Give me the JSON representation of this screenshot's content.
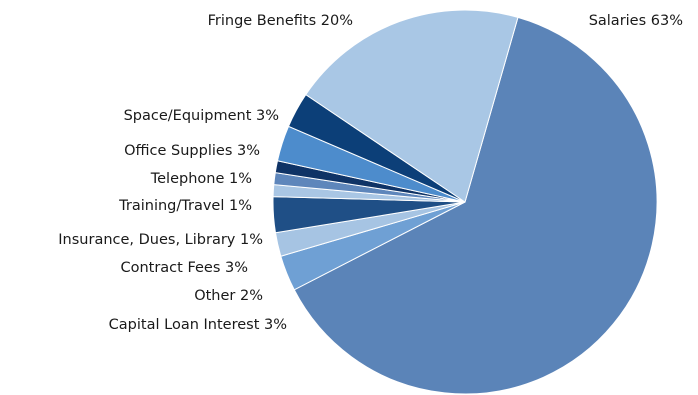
{
  "chart_data": {
    "type": "pie",
    "title": "",
    "start_angle_deg": 16,
    "direction": "clockwise",
    "slices": [
      {
        "label": "Salaries 63%",
        "value": 63,
        "color": "#5b84b8"
      },
      {
        "label": "Capital Loan Interest 3%",
        "value": 3,
        "color": "#6fa0d4"
      },
      {
        "label": "Other 2%",
        "value": 2,
        "color": "#a6c4e3"
      },
      {
        "label": "Contract Fees 3%",
        "value": 3,
        "color": "#1f4f86"
      },
      {
        "label": "Insurance, Dues, Library 1%",
        "value": 1,
        "color": "#a9c6e4"
      },
      {
        "label": "Training/Travel 1%",
        "value": 1,
        "color": "#5e86bb"
      },
      {
        "label": "Telephone 1%",
        "value": 1,
        "color": "#0f3366"
      },
      {
        "label": "Office Supplies 3%",
        "value": 3,
        "color": "#4d8ccc"
      },
      {
        "label": "Space/Equipment 3%",
        "value": 3,
        "color": "#0c3f78"
      },
      {
        "label": "Fringe Benefits 20%",
        "value": 20,
        "color": "#a9c7e5"
      }
    ]
  }
}
